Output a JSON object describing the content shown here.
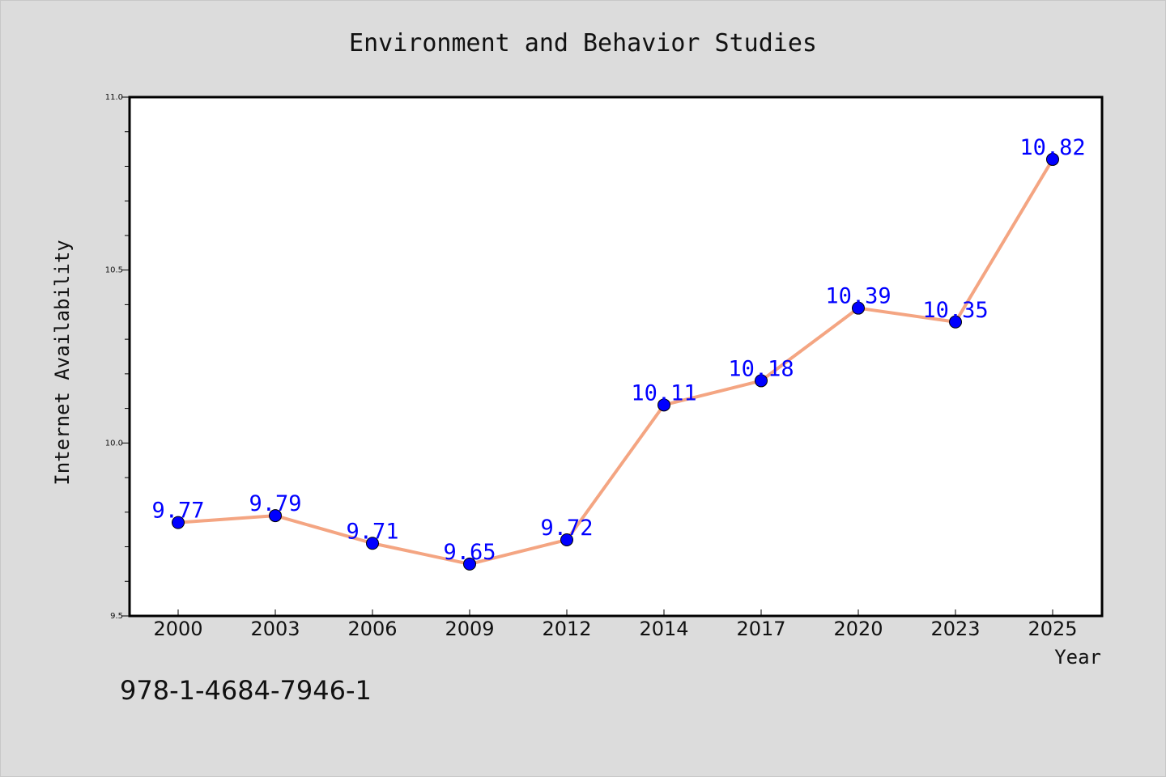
{
  "chart_data": {
    "type": "line",
    "title": "Environment and Behavior Studies",
    "xlabel": "Year",
    "ylabel": "Internet Availability",
    "categories": [
      "2000",
      "2003",
      "2006",
      "2009",
      "2012",
      "2014",
      "2017",
      "2020",
      "2023",
      "2025"
    ],
    "series": [
      {
        "values": [
          9.77,
          9.79,
          9.71,
          9.65,
          9.72,
          10.11,
          10.18,
          10.39,
          10.35,
          10.82
        ],
        "value_labels": [
          "9.77",
          "9.79",
          "9.71",
          "9.65",
          "9.72",
          "10.11",
          "10.18",
          "10.39",
          "10.35",
          "10.82"
        ]
      }
    ],
    "ylim": [
      9.5,
      11.0
    ],
    "yticks": [
      "9.5",
      "10.0",
      "10.5",
      "11.0"
    ],
    "grid": false,
    "colors": {
      "line": "#f4a582",
      "marker": "#0000ff",
      "data_label": "#0000ff",
      "plot_background": "#ffffff",
      "figure_background": "#dcdcdc"
    }
  },
  "annotation": "978-1-4684-7946-1"
}
